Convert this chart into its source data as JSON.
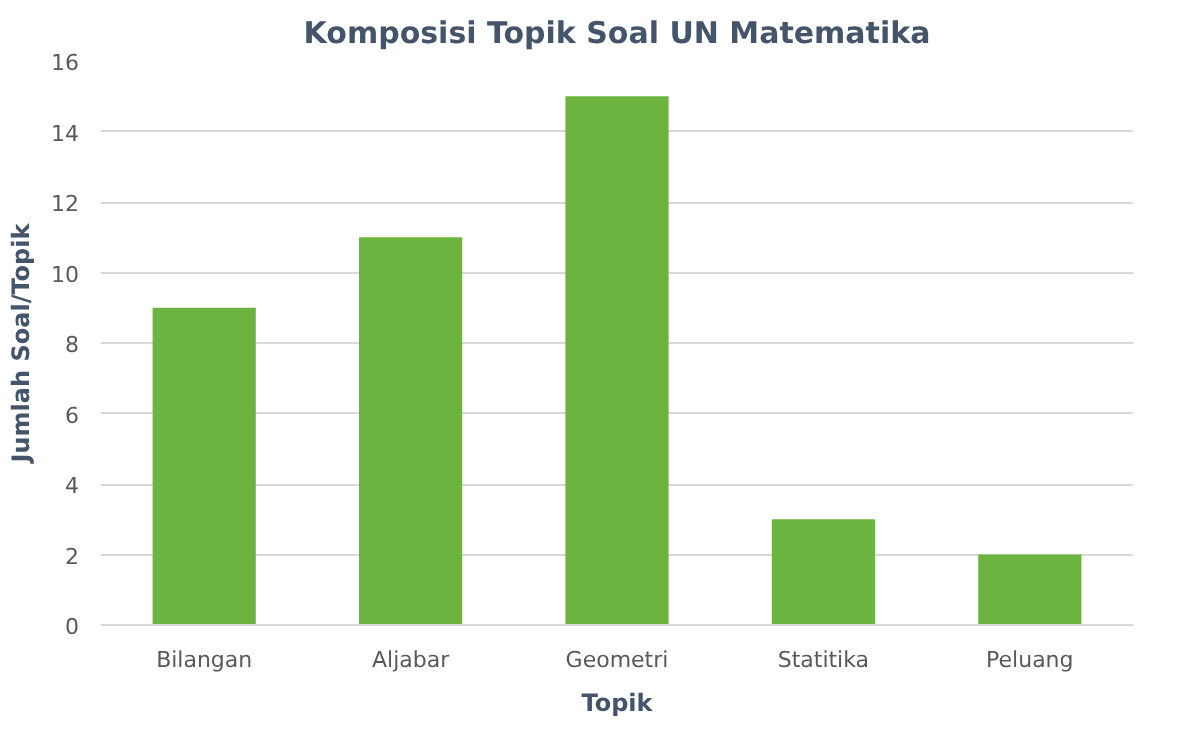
{
  "chart_data": {
    "type": "bar",
    "title": "Komposisi Topik Soal UN Matematika",
    "xlabel": "Topik",
    "ylabel": "Jumlah Soal/Topik",
    "categories": [
      "Bilangan",
      "Aljabar",
      "Geometri",
      "Statitika",
      "Peluang"
    ],
    "values": [
      9,
      11,
      15,
      3,
      2
    ],
    "color": "#6db33f",
    "ylim": [
      0,
      16
    ],
    "yticks": [
      0,
      2,
      4,
      6,
      8,
      10,
      12,
      14,
      16
    ],
    "grid": "y"
  }
}
